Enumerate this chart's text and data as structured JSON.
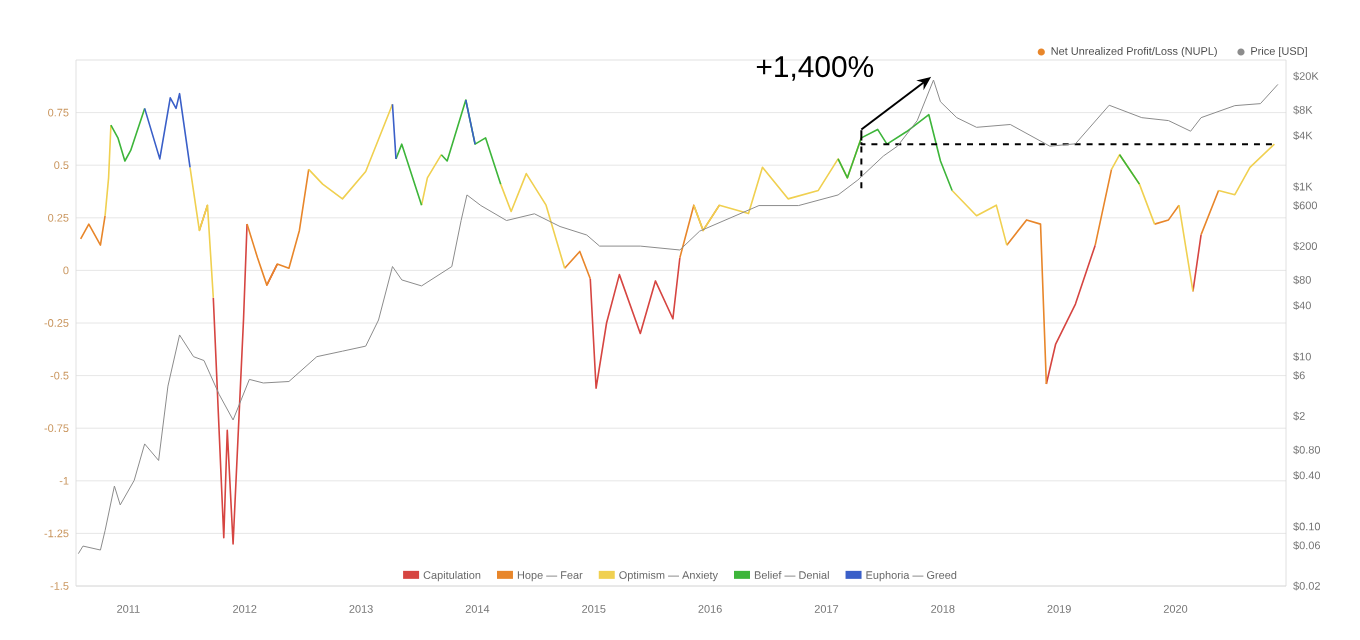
{
  "chart_data": {
    "type": "line",
    "annotations": [
      {
        "text": "+1,400%",
        "x": 2017.3,
        "y": 0.6
      },
      "Net Unrealized Profit/Loss (NUPL)"
    ],
    "x": [
      2010.59,
      2010.66,
      2010.76,
      2010.8,
      2010.83,
      2010.85,
      2010.91,
      2010.97,
      2011.02,
      2011.14,
      2011.27,
      2011.36,
      2011.41,
      2011.44,
      2011.53,
      2011.61,
      2011.68,
      2011.73,
      2011.82,
      2011.85,
      2011.9,
      2011.99,
      2012.02,
      2012.11,
      2012.19,
      2012.28,
      2012.38,
      2012.47,
      2012.55,
      2012.67,
      2012.84,
      2013.04,
      2013.27,
      2013.3,
      2013.35,
      2013.52,
      2013.57,
      2013.69,
      2013.74,
      2013.9,
      2013.98,
      2014.07,
      2014.2,
      2014.29,
      2014.42,
      2014.59,
      2014.75,
      2014.88,
      2014.97,
      2015.02,
      2015.11,
      2015.22,
      2015.4,
      2015.53,
      2015.68,
      2015.74,
      2015.86,
      2015.94,
      2016.08,
      2016.33,
      2016.45,
      2016.67,
      2016.93,
      2017.1,
      2017.18,
      2017.3,
      2017.44,
      2017.52,
      2017.69,
      2017.88,
      2017.98,
      2018.08,
      2018.29,
      2018.46,
      2018.55,
      2018.72,
      2018.84,
      2018.89,
      2018.97,
      2019.14,
      2019.31,
      2019.45,
      2019.52,
      2019.69,
      2019.82,
      2019.94,
      2020.03,
      2020.15,
      2020.22,
      2020.37,
      2020.51,
      2020.64,
      2020.85
    ],
    "series": [
      {
        "name": "Capitulation",
        "color": "#d64541",
        "values": [
          null,
          null,
          null,
          null,
          null,
          null,
          null,
          null,
          null,
          null,
          null,
          null,
          null,
          null,
          null,
          null,
          null,
          -0.13,
          -1.27,
          -0.76,
          -1.3,
          -0.23,
          0.22,
          null,
          -0.07,
          0.03,
          null,
          null,
          null,
          null,
          null,
          null,
          null,
          null,
          null,
          null,
          null,
          null,
          null,
          null,
          null,
          null,
          null,
          null,
          null,
          null,
          null,
          null,
          -0.04,
          -0.56,
          -0.25,
          -0.02,
          -0.3,
          -0.05,
          -0.23,
          0.06,
          null,
          null,
          null,
          null,
          null,
          null,
          null,
          null,
          null,
          null,
          null,
          null,
          null,
          null,
          null,
          null,
          null,
          null,
          null,
          null,
          null,
          -0.54,
          -0.35,
          -0.16,
          0.12,
          null,
          null,
          null,
          null,
          null,
          null,
          -0.1,
          0.17,
          null,
          null,
          null,
          null
        ]
      },
      {
        "name": "Hope — Fear",
        "color": "#e8862a",
        "values": [
          0.15,
          0.22,
          0.12,
          0.26,
          null,
          null,
          null,
          null,
          null,
          null,
          null,
          null,
          null,
          null,
          null,
          0.19,
          0.31,
          null,
          null,
          null,
          null,
          null,
          0.22,
          0.06,
          -0.07,
          0.03,
          0.01,
          0.19,
          0.48,
          null,
          null,
          null,
          null,
          null,
          null,
          null,
          null,
          null,
          null,
          null,
          null,
          null,
          null,
          null,
          null,
          null,
          0.01,
          0.09,
          -0.04,
          null,
          null,
          null,
          null,
          null,
          null,
          0.06,
          0.31,
          0.19,
          0.31,
          null,
          null,
          null,
          null,
          null,
          null,
          null,
          null,
          null,
          null,
          null,
          null,
          null,
          null,
          null,
          0.12,
          0.24,
          0.22,
          -0.54,
          null,
          null,
          0.12,
          0.48,
          null,
          null,
          0.22,
          0.24,
          0.31,
          null,
          0.17,
          0.38,
          null,
          null,
          null
        ]
      },
      {
        "name": "Optimism — Anxiety",
        "color": "#f0d050",
        "values": [
          null,
          null,
          null,
          0.26,
          0.44,
          0.69,
          null,
          null,
          null,
          null,
          null,
          null,
          null,
          null,
          0.49,
          0.19,
          0.31,
          -0.13,
          null,
          null,
          null,
          null,
          null,
          null,
          null,
          null,
          null,
          null,
          0.48,
          0.41,
          0.34,
          0.47,
          0.79,
          null,
          null,
          0.31,
          0.44,
          0.55,
          null,
          null,
          null,
          null,
          0.41,
          0.28,
          0.46,
          0.31,
          0.01,
          null,
          null,
          null,
          null,
          null,
          null,
          null,
          null,
          null,
          0.31,
          0.19,
          0.31,
          0.27,
          0.49,
          0.34,
          0.38,
          0.53,
          0.44,
          0.63,
          null,
          null,
          null,
          null,
          null,
          0.38,
          0.26,
          0.31,
          0.12,
          null,
          null,
          null,
          null,
          null,
          null,
          0.48,
          0.55,
          0.41,
          0.22,
          null,
          0.31,
          -0.1,
          null,
          0.38,
          0.36,
          0.49,
          0.6
        ]
      },
      {
        "name": "Belief — Denial",
        "color": "#3db53a",
        "values": [
          null,
          null,
          null,
          null,
          null,
          0.69,
          0.63,
          0.52,
          0.57,
          0.77,
          null,
          null,
          null,
          null,
          null,
          null,
          null,
          null,
          null,
          null,
          null,
          null,
          null,
          null,
          null,
          null,
          null,
          null,
          null,
          null,
          null,
          null,
          null,
          0.53,
          0.6,
          0.31,
          null,
          0.55,
          0.52,
          0.81,
          0.6,
          0.63,
          0.41,
          null,
          null,
          null,
          null,
          null,
          null,
          null,
          null,
          null,
          null,
          null,
          null,
          null,
          null,
          null,
          null,
          null,
          null,
          null,
          null,
          0.53,
          0.44,
          0.63,
          0.67,
          0.6,
          0.66,
          0.74,
          0.52,
          0.38,
          null,
          null,
          null,
          null,
          null,
          null,
          null,
          null,
          null,
          null,
          0.55,
          0.41,
          null,
          null,
          null,
          null,
          null,
          null,
          null,
          null,
          null
        ]
      },
      {
        "name": "Euphoria — Greed",
        "color": "#3a5fc8",
        "values": [
          null,
          null,
          null,
          null,
          null,
          null,
          null,
          null,
          null,
          0.77,
          0.53,
          0.82,
          0.77,
          0.84,
          0.49,
          null,
          null,
          null,
          null,
          null,
          null,
          null,
          null,
          null,
          null,
          null,
          null,
          null,
          null,
          null,
          null,
          null,
          0.79,
          0.53,
          null,
          null,
          null,
          null,
          null,
          0.81,
          0.6,
          null,
          null,
          null,
          null,
          null,
          null,
          null,
          null,
          null,
          null,
          null,
          null,
          null,
          null,
          null,
          null,
          null,
          null,
          null,
          null,
          null,
          null,
          null,
          null,
          null,
          null,
          null,
          null,
          null,
          null,
          null,
          null,
          null,
          null,
          null,
          null,
          null,
          null,
          null,
          null,
          null,
          null,
          null,
          null,
          null,
          null,
          null,
          null,
          null,
          null,
          null,
          null
        ]
      },
      {
        "type": "line",
        "color": "#000000",
        "line_style": "dashed",
        "x": [
          2017.3,
          2017.3,
          2017.3,
          2020.85
        ],
        "values": [
          0.39,
          0.67,
          0.6,
          0.6
        ]
      },
      {
        "color": "#8c8c8c",
        "axis": "y2",
        "x": [
          2010.57,
          2010.61,
          2010.76,
          2010.8,
          2010.88,
          2010.93,
          2011.05,
          2011.14,
          2011.26,
          2011.34,
          2011.44,
          2011.56,
          2011.65,
          2011.78,
          2011.9,
          2012.04,
          2012.16,
          2012.38,
          2012.62,
          2012.84,
          2013.04,
          2013.15,
          2013.27,
          2013.35,
          2013.52,
          2013.78,
          2013.86,
          2013.91,
          2014.03,
          2014.25,
          2014.49,
          2014.71,
          2014.94,
          2015.05,
          2015.4,
          2015.74,
          2015.91,
          2016.42,
          2016.76,
          2017.1,
          2017.27,
          2017.49,
          2017.61,
          2017.78,
          2017.92,
          2017.98,
          2018.12,
          2018.29,
          2018.58,
          2018.92,
          2019.14,
          2019.43,
          2019.71,
          2019.94,
          2020.13,
          2020.22,
          2020.51,
          2020.73,
          2020.88
        ],
        "values": [
          0.048,
          0.059,
          0.053,
          0.09,
          0.3,
          0.18,
          0.35,
          0.94,
          0.6,
          4.5,
          18,
          10,
          9,
          3.6,
          1.8,
          5.4,
          4.9,
          5.1,
          10,
          11.6,
          13.3,
          27,
          115,
          80,
          68,
          115,
          400,
          800,
          600,
          400,
          480,
          340,
          270,
          200,
          200,
          180,
          300,
          600,
          600,
          800,
          1200,
          2300,
          3000,
          6000,
          18000,
          10000,
          6500,
          5000,
          5400,
          3000,
          3200,
          9100,
          6500,
          6000,
          4500,
          6500,
          9000,
          9500,
          16000
        ]
      }
    ],
    "xlim": [
      2010.55,
      2020.95
    ],
    "xticks": [
      2011,
      2012,
      2013,
      2014,
      2015,
      2016,
      2017,
      2018,
      2019,
      2020
    ],
    "ylim": [
      -1.5,
      1.0
    ],
    "yticks": [
      0.75,
      0.5,
      0.25,
      0,
      -0.25,
      -0.5,
      -0.75,
      -1,
      -1.25,
      -1.5
    ],
    "y2label": "Price [USD]",
    "y2lim": [
      0.02,
      31000
    ],
    "y2ticks": [
      {
        "value": 20000,
        "label": "$20K"
      },
      {
        "value": 8000,
        "label": "$8K"
      },
      {
        "value": 4000,
        "label": "$4K"
      },
      {
        "value": 1000,
        "label": "$1K"
      },
      {
        "value": 600,
        "label": "$600"
      },
      {
        "value": 200,
        "label": "$200"
      },
      {
        "value": 80,
        "label": "$80"
      },
      {
        "value": 40,
        "label": "$40"
      },
      {
        "value": 10,
        "label": "$10"
      },
      {
        "value": 6,
        "label": "$6"
      },
      {
        "value": 2,
        "label": "$2"
      },
      {
        "value": 0.8,
        "label": "$0.80"
      },
      {
        "value": 0.4,
        "label": "$0.40"
      },
      {
        "value": 0.1,
        "label": "$0.10"
      },
      {
        "value": 0.06,
        "label": "$0.06"
      },
      {
        "value": 0.02,
        "label": "$0.02"
      }
    ],
    "log": "y2",
    "grid": "y",
    "legend": "bottom"
  }
}
